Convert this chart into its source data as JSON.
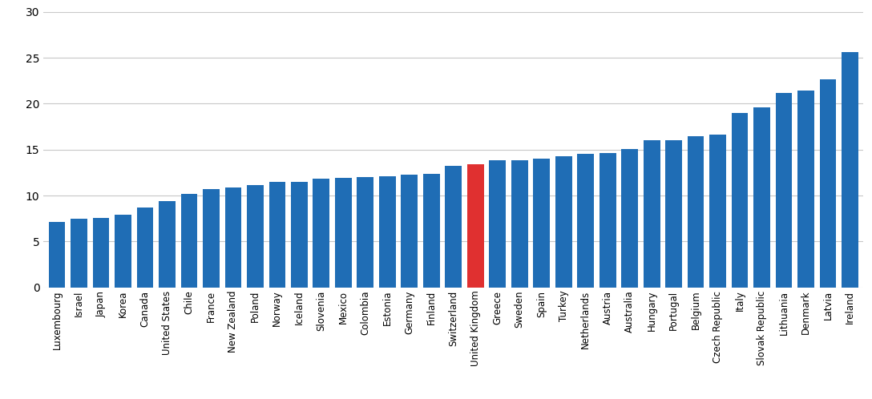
{
  "categories": [
    "Luxembourg",
    "Israel",
    "Japan",
    "Korea",
    "Canada",
    "United States",
    "Chile",
    "France",
    "New Zealand",
    "Poland",
    "Norway",
    "Iceland",
    "Slovenia",
    "Mexico",
    "Colombia",
    "Estonia",
    "Germany",
    "Finland",
    "Switzerland",
    "United Kingdom",
    "Greece",
    "Sweden",
    "Spain",
    "Turkey",
    "Netherlands",
    "Austria",
    "Australia",
    "Hungary",
    "Portugal",
    "Belgium",
    "Czech Republic",
    "Italy",
    "Slovak Republic",
    "Lithuania",
    "Denmark",
    "Latvia",
    "Ireland"
  ],
  "values": [
    7.1,
    7.5,
    7.6,
    7.9,
    8.7,
    9.4,
    10.2,
    10.7,
    10.9,
    11.1,
    11.5,
    11.5,
    11.8,
    11.9,
    12.0,
    12.1,
    12.3,
    12.4,
    13.2,
    13.4,
    13.8,
    13.8,
    14.0,
    14.3,
    14.5,
    14.6,
    15.1,
    16.0,
    16.0,
    16.5,
    16.6,
    19.0,
    19.6,
    21.2,
    21.4,
    22.7,
    25.6
  ],
  "highlight_index": 19,
  "bar_color": "#1f6db5",
  "highlight_color": "#e03030",
  "ylim": [
    0,
    30
  ],
  "yticks": [
    0,
    5,
    10,
    15,
    20,
    25,
    30
  ],
  "background_color": "#ffffff",
  "grid_color": "#c8c8c8",
  "figsize": [
    10.88,
    4.98
  ],
  "dpi": 100
}
